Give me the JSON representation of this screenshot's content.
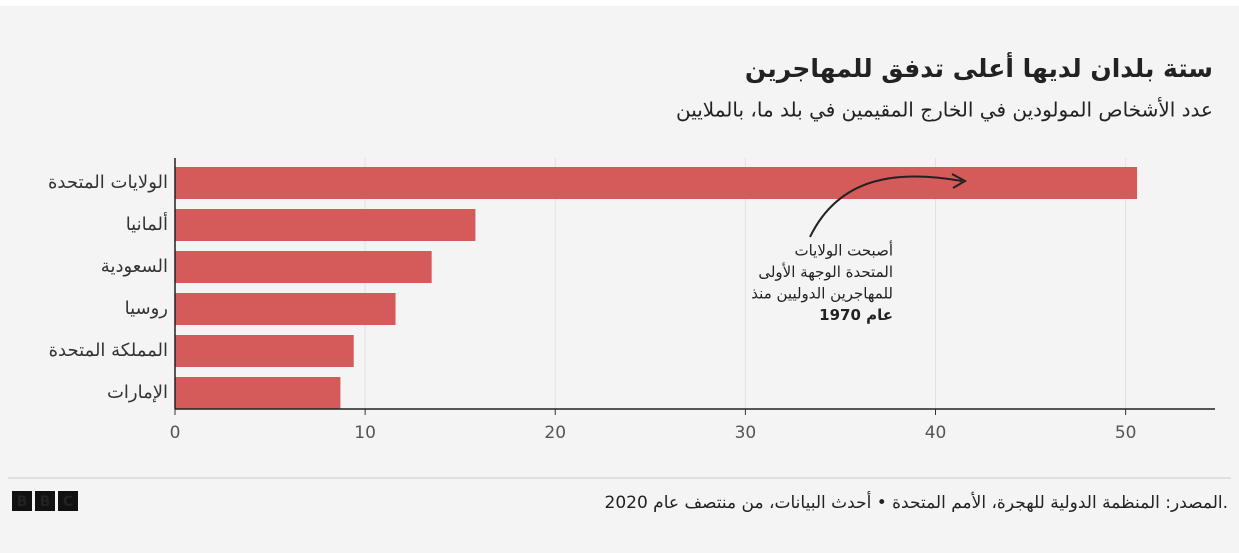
{
  "chart_data": {
    "type": "barh",
    "title": "ستة بلدان لديها أعلى تدفق للمهاجرين",
    "subtitle": "عدد الأشخاص المولودين في الخارج المقيمين في بلد ما، بالملايين",
    "categories": [
      "الولايات المتحدة",
      "ألمانيا",
      "السعودية",
      "روسيا",
      "المملكة المتحدة",
      "الإمارات"
    ],
    "values": [
      50.6,
      15.8,
      13.5,
      11.6,
      9.4,
      8.7
    ],
    "color": "#d55b5b",
    "xlim": [
      0,
      54.7
    ],
    "xticks": [
      0,
      10,
      20,
      30,
      40,
      50
    ],
    "grid": true,
    "annotation": [
      "أصبحت الولايات",
      "المتحدة الوجهة الأولى",
      "للمهاجرين الدوليين منذ",
      "عام 1970"
    ],
    "source": "المصدر: المنظمة الدولية للهجرة، الأمم المتحدة • أحدث البيانات، من منتصف عام 2020.",
    "logo": [
      "B",
      "B",
      "C"
    ]
  }
}
